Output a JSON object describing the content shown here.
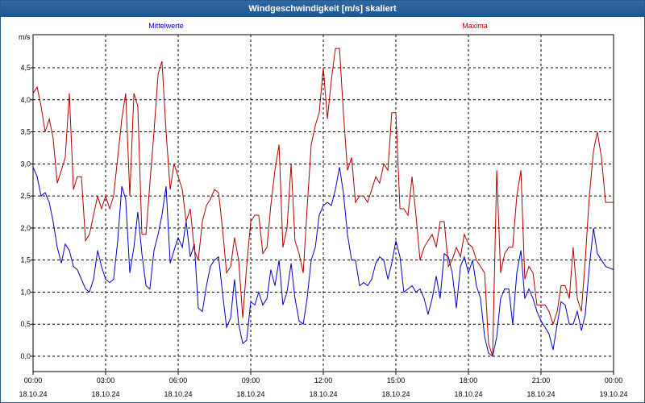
{
  "window": {
    "title": "Windgeschwindigkeit [m/s] skaliert"
  },
  "chart_data": {
    "type": "line",
    "title": "Windgeschwindigkeit [m/s] skaliert",
    "ylabel": "m/s",
    "xlabel": "",
    "ylim": [
      -0.25,
      5.0
    ],
    "xlim": [
      0,
      24
    ],
    "grid": true,
    "legend": "top",
    "yticks": [
      {
        "value": 0.0,
        "label": "0,0"
      },
      {
        "value": 0.5,
        "label": "0,5"
      },
      {
        "value": 1.0,
        "label": "1,0"
      },
      {
        "value": 1.5,
        "label": "1,5"
      },
      {
        "value": 2.0,
        "label": "2,0"
      },
      {
        "value": 2.5,
        "label": "2,5"
      },
      {
        "value": 3.0,
        "label": "3,0"
      },
      {
        "value": 3.5,
        "label": "3,5"
      },
      {
        "value": 4.0,
        "label": "4,0"
      },
      {
        "value": 4.5,
        "label": "4,5"
      }
    ],
    "xticks": [
      {
        "value": 0,
        "time": "00:00",
        "date": "18.10.24"
      },
      {
        "value": 3,
        "time": "03:00",
        "date": "18.10.24"
      },
      {
        "value": 6,
        "time": "06:00",
        "date": "18.10.24"
      },
      {
        "value": 9,
        "time": "09:00",
        "date": "18.10.24"
      },
      {
        "value": 12,
        "time": "12:00",
        "date": "18.10.24"
      },
      {
        "value": 15,
        "time": "15:00",
        "date": "18.10.24"
      },
      {
        "value": 18,
        "time": "18:00",
        "date": "18.10.24"
      },
      {
        "value": 21,
        "time": "21:00",
        "date": "18.10.24"
      },
      {
        "value": 24,
        "time": "00:00",
        "date": "19.10.24"
      }
    ],
    "series": [
      {
        "name": "Mittelwerte",
        "color": "#0000c0",
        "points": [
          [
            0.0,
            2.95
          ],
          [
            0.17,
            2.8
          ],
          [
            0.33,
            2.5
          ],
          [
            0.5,
            2.55
          ],
          [
            0.67,
            2.4
          ],
          [
            0.83,
            2.1
          ],
          [
            1.0,
            1.7
          ],
          [
            1.17,
            1.45
          ],
          [
            1.33,
            1.75
          ],
          [
            1.5,
            1.65
          ],
          [
            1.67,
            1.4
          ],
          [
            1.83,
            1.35
          ],
          [
            2.0,
            1.2
          ],
          [
            2.17,
            1.05
          ],
          [
            2.33,
            1.0
          ],
          [
            2.5,
            1.2
          ],
          [
            2.67,
            1.65
          ],
          [
            2.83,
            1.4
          ],
          [
            3.0,
            1.2
          ],
          [
            3.17,
            1.15
          ],
          [
            3.33,
            1.2
          ],
          [
            3.5,
            1.8
          ],
          [
            3.67,
            2.65
          ],
          [
            3.83,
            2.45
          ],
          [
            4.0,
            1.3
          ],
          [
            4.17,
            1.7
          ],
          [
            4.33,
            2.25
          ],
          [
            4.5,
            1.6
          ],
          [
            4.67,
            1.1
          ],
          [
            4.83,
            1.05
          ],
          [
            5.0,
            1.65
          ],
          [
            5.17,
            1.9
          ],
          [
            5.33,
            2.2
          ],
          [
            5.5,
            2.65
          ],
          [
            5.67,
            1.45
          ],
          [
            5.83,
            1.65
          ],
          [
            6.0,
            1.85
          ],
          [
            6.17,
            1.7
          ],
          [
            6.33,
            2.1
          ],
          [
            6.5,
            1.55
          ],
          [
            6.67,
            1.75
          ],
          [
            6.83,
            0.75
          ],
          [
            7.0,
            0.7
          ],
          [
            7.17,
            1.1
          ],
          [
            7.33,
            1.4
          ],
          [
            7.5,
            1.5
          ],
          [
            7.67,
            1.55
          ],
          [
            7.83,
            1.0
          ],
          [
            8.0,
            0.45
          ],
          [
            8.17,
            0.6
          ],
          [
            8.33,
            1.2
          ],
          [
            8.5,
            0.5
          ],
          [
            8.67,
            0.2
          ],
          [
            8.83,
            0.25
          ],
          [
            9.0,
            0.85
          ],
          [
            9.17,
            0.8
          ],
          [
            9.33,
            1.0
          ],
          [
            9.5,
            0.8
          ],
          [
            9.67,
            0.9
          ],
          [
            9.83,
            1.35
          ],
          [
            10.0,
            1.1
          ],
          [
            10.17,
            1.5
          ],
          [
            10.33,
            0.8
          ],
          [
            10.5,
            1.0
          ],
          [
            10.67,
            1.45
          ],
          [
            10.83,
            0.9
          ],
          [
            11.0,
            0.55
          ],
          [
            11.17,
            0.5
          ],
          [
            11.33,
            0.9
          ],
          [
            11.5,
            1.5
          ],
          [
            11.67,
            1.7
          ],
          [
            11.83,
            2.2
          ],
          [
            12.0,
            2.35
          ],
          [
            12.17,
            2.4
          ],
          [
            12.33,
            2.35
          ],
          [
            12.5,
            2.6
          ],
          [
            12.67,
            2.95
          ],
          [
            12.83,
            2.55
          ],
          [
            13.0,
            1.9
          ],
          [
            13.17,
            1.5
          ],
          [
            13.33,
            1.5
          ],
          [
            13.5,
            1.1
          ],
          [
            13.67,
            1.15
          ],
          [
            13.83,
            1.1
          ],
          [
            14.0,
            1.2
          ],
          [
            14.17,
            1.45
          ],
          [
            14.33,
            1.55
          ],
          [
            14.5,
            1.5
          ],
          [
            14.67,
            1.2
          ],
          [
            14.83,
            1.45
          ],
          [
            15.0,
            1.8
          ],
          [
            15.17,
            1.55
          ],
          [
            15.33,
            1.0
          ],
          [
            15.5,
            1.05
          ],
          [
            15.67,
            1.1
          ],
          [
            15.83,
            1.0
          ],
          [
            16.0,
            1.05
          ],
          [
            16.17,
            0.9
          ],
          [
            16.33,
            0.65
          ],
          [
            16.5,
            0.9
          ],
          [
            16.67,
            1.25
          ],
          [
            16.83,
            0.9
          ],
          [
            17.0,
            1.6
          ],
          [
            17.17,
            1.55
          ],
          [
            17.33,
            1.3
          ],
          [
            17.5,
            0.75
          ],
          [
            17.67,
            1.4
          ],
          [
            17.83,
            1.55
          ],
          [
            18.0,
            1.3
          ],
          [
            18.17,
            1.5
          ],
          [
            18.33,
            1.1
          ],
          [
            18.5,
            0.9
          ],
          [
            18.67,
            0.3
          ],
          [
            18.83,
            0.05
          ],
          [
            19.0,
            0.0
          ],
          [
            19.17,
            0.3
          ],
          [
            19.33,
            0.9
          ],
          [
            19.5,
            1.05
          ],
          [
            19.67,
            1.05
          ],
          [
            19.83,
            0.5
          ],
          [
            20.0,
            1.3
          ],
          [
            20.17,
            1.65
          ],
          [
            20.33,
            0.9
          ],
          [
            20.5,
            1.05
          ],
          [
            20.67,
            0.9
          ],
          [
            20.83,
            0.7
          ],
          [
            21.0,
            0.55
          ],
          [
            21.17,
            0.45
          ],
          [
            21.33,
            0.35
          ],
          [
            21.5,
            0.1
          ],
          [
            21.67,
            0.5
          ],
          [
            21.83,
            0.85
          ],
          [
            22.0,
            0.8
          ],
          [
            22.17,
            0.5
          ],
          [
            22.33,
            0.5
          ],
          [
            22.5,
            0.7
          ],
          [
            22.67,
            0.4
          ],
          [
            22.83,
            0.65
          ],
          [
            23.0,
            1.4
          ],
          [
            23.17,
            2.0
          ],
          [
            23.33,
            1.6
          ],
          [
            23.5,
            1.5
          ],
          [
            23.67,
            1.4
          ],
          [
            24.0,
            1.35
          ]
        ]
      },
      {
        "name": "Maxima",
        "color": "#b00000",
        "points": [
          [
            0.0,
            4.1
          ],
          [
            0.17,
            4.2
          ],
          [
            0.33,
            3.9
          ],
          [
            0.5,
            3.5
          ],
          [
            0.67,
            3.7
          ],
          [
            0.83,
            3.4
          ],
          [
            1.0,
            2.7
          ],
          [
            1.17,
            2.9
          ],
          [
            1.33,
            3.1
          ],
          [
            1.5,
            4.1
          ],
          [
            1.67,
            2.6
          ],
          [
            1.83,
            2.8
          ],
          [
            2.0,
            2.8
          ],
          [
            2.17,
            1.8
          ],
          [
            2.33,
            1.9
          ],
          [
            2.5,
            2.2
          ],
          [
            2.67,
            2.5
          ],
          [
            2.83,
            2.3
          ],
          [
            3.0,
            2.5
          ],
          [
            3.17,
            2.3
          ],
          [
            3.33,
            2.5
          ],
          [
            3.5,
            3.1
          ],
          [
            3.67,
            3.7
          ],
          [
            3.83,
            4.1
          ],
          [
            4.0,
            2.5
          ],
          [
            4.17,
            4.1
          ],
          [
            4.33,
            3.9
          ],
          [
            4.5,
            1.9
          ],
          [
            4.67,
            1.9
          ],
          [
            4.83,
            2.7
          ],
          [
            5.0,
            3.5
          ],
          [
            5.17,
            4.4
          ],
          [
            5.33,
            4.6
          ],
          [
            5.5,
            3.5
          ],
          [
            5.67,
            2.6
          ],
          [
            5.83,
            3.0
          ],
          [
            6.0,
            2.8
          ],
          [
            6.17,
            2.6
          ],
          [
            6.33,
            2.1
          ],
          [
            6.5,
            2.3
          ],
          [
            6.67,
            1.65
          ],
          [
            6.83,
            1.5
          ],
          [
            7.0,
            2.1
          ],
          [
            7.17,
            2.35
          ],
          [
            7.33,
            2.45
          ],
          [
            7.5,
            2.6
          ],
          [
            7.67,
            2.55
          ],
          [
            7.83,
            2.0
          ],
          [
            8.0,
            1.3
          ],
          [
            8.17,
            1.4
          ],
          [
            8.33,
            1.85
          ],
          [
            8.5,
            1.5
          ],
          [
            8.67,
            0.6
          ],
          [
            8.83,
            1.4
          ],
          [
            9.0,
            2.1
          ],
          [
            9.17,
            2.2
          ],
          [
            9.33,
            2.2
          ],
          [
            9.5,
            1.6
          ],
          [
            9.67,
            1.7
          ],
          [
            9.83,
            2.35
          ],
          [
            10.0,
            2.9
          ],
          [
            10.17,
            3.3
          ],
          [
            10.33,
            1.7
          ],
          [
            10.5,
            2.0
          ],
          [
            10.67,
            3.0
          ],
          [
            10.83,
            1.8
          ],
          [
            11.0,
            1.6
          ],
          [
            11.17,
            1.3
          ],
          [
            11.33,
            2.3
          ],
          [
            11.5,
            3.3
          ],
          [
            11.67,
            3.6
          ],
          [
            11.83,
            3.8
          ],
          [
            12.0,
            4.5
          ],
          [
            12.17,
            3.7
          ],
          [
            12.33,
            4.3
          ],
          [
            12.5,
            4.8
          ],
          [
            12.67,
            4.8
          ],
          [
            12.83,
            3.8
          ],
          [
            13.0,
            2.9
          ],
          [
            13.17,
            3.1
          ],
          [
            13.33,
            2.4
          ],
          [
            13.5,
            2.5
          ],
          [
            13.67,
            2.5
          ],
          [
            13.83,
            2.4
          ],
          [
            14.0,
            2.6
          ],
          [
            14.17,
            2.8
          ],
          [
            14.33,
            2.7
          ],
          [
            14.5,
            3.0
          ],
          [
            14.67,
            2.9
          ],
          [
            14.83,
            3.8
          ],
          [
            15.0,
            3.8
          ],
          [
            15.17,
            2.3
          ],
          [
            15.33,
            2.3
          ],
          [
            15.5,
            2.2
          ],
          [
            15.67,
            2.8
          ],
          [
            15.83,
            2.2
          ],
          [
            16.0,
            1.5
          ],
          [
            16.17,
            1.7
          ],
          [
            16.33,
            1.8
          ],
          [
            16.5,
            1.9
          ],
          [
            16.67,
            1.7
          ],
          [
            16.83,
            2.1
          ],
          [
            17.0,
            2.1
          ],
          [
            17.17,
            1.4
          ],
          [
            17.33,
            1.5
          ],
          [
            17.5,
            1.7
          ],
          [
            17.67,
            1.55
          ],
          [
            17.83,
            1.9
          ],
          [
            18.0,
            1.75
          ],
          [
            18.17,
            1.7
          ],
          [
            18.33,
            1.5
          ],
          [
            18.5,
            1.4
          ],
          [
            18.67,
            1.3
          ],
          [
            18.83,
            0.2
          ],
          [
            19.0,
            0.0
          ],
          [
            19.17,
            2.9
          ],
          [
            19.33,
            1.3
          ],
          [
            19.5,
            1.6
          ],
          [
            19.67,
            1.7
          ],
          [
            19.83,
            1.7
          ],
          [
            20.0,
            2.5
          ],
          [
            20.17,
            2.9
          ],
          [
            20.33,
            1.2
          ],
          [
            20.5,
            1.4
          ],
          [
            20.67,
            1.3
          ],
          [
            20.83,
            0.8
          ],
          [
            21.0,
            0.8
          ],
          [
            21.17,
            0.8
          ],
          [
            21.33,
            0.7
          ],
          [
            21.5,
            0.5
          ],
          [
            21.67,
            0.7
          ],
          [
            21.83,
            1.1
          ],
          [
            22.0,
            1.1
          ],
          [
            22.17,
            0.9
          ],
          [
            22.33,
            1.7
          ],
          [
            22.5,
            0.9
          ],
          [
            22.67,
            0.7
          ],
          [
            22.83,
            1.5
          ],
          [
            23.0,
            2.5
          ],
          [
            23.17,
            3.2
          ],
          [
            23.33,
            3.5
          ],
          [
            23.5,
            3.1
          ],
          [
            23.67,
            2.4
          ],
          [
            24.0,
            2.4
          ]
        ]
      }
    ]
  }
}
